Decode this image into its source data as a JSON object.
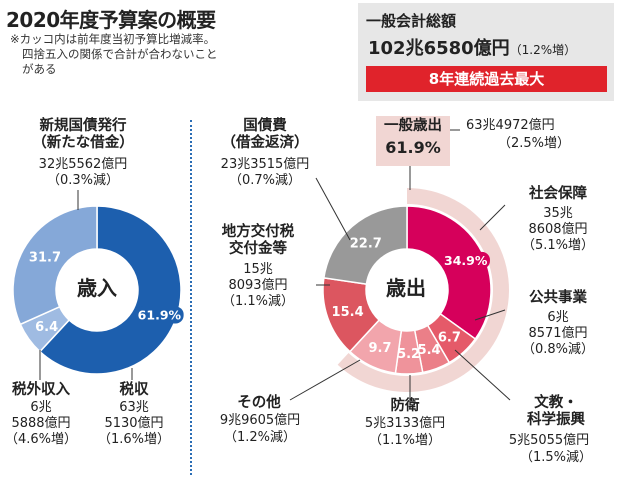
{
  "title": "2020年度予算案の概要",
  "notes": [
    "※カッコ内は前年度当初予算比増減率。",
    "四捨五入の関係で合計が合わないこと",
    "がある"
  ],
  "total": {
    "label": "一般会計総額",
    "value_main": "102兆6580億円",
    "value_change": "（1.2%増）",
    "banner": "8年連続過去最大"
  },
  "revenue": {
    "center_label": "歳入",
    "items": [
      {
        "key": "new_bonds",
        "name_lines": [
          "新規国債発行",
          "（新たな借金）"
        ],
        "amount": "32兆5562億円",
        "change": "（0.3%減）",
        "share": "31.7",
        "color": "#85a8d8"
      },
      {
        "key": "non_tax",
        "name_lines": [
          "税外収入"
        ],
        "amount_lines": [
          "6兆",
          "5888億円"
        ],
        "change": "（4.6%増）",
        "share": "6.4",
        "color": "#9fbbe2"
      },
      {
        "key": "tax",
        "name_lines": [
          "税収"
        ],
        "amount_lines": [
          "63兆",
          "5130億円"
        ],
        "change": "（1.6%増）",
        "share": "61.9%",
        "color": "#1d5fae"
      }
    ]
  },
  "expenditure": {
    "center_label": "歳出",
    "general": {
      "name": "一般歳出",
      "share": "61.9%",
      "amount": "63兆4972億円",
      "change": "（2.5%増）"
    },
    "items": [
      {
        "key": "debt_service",
        "name_lines": [
          "国債費",
          "（借金返済）"
        ],
        "amount": "23兆3515億円",
        "change": "（0.7%減）",
        "share": "22.7",
        "color": "#999999"
      },
      {
        "key": "local_grants",
        "name_lines": [
          "地方交付税",
          "交付金等"
        ],
        "amount_lines": [
          "15兆",
          "8093億円"
        ],
        "change": "（1.1%減）",
        "share": "15.4",
        "color": "#dc5660"
      },
      {
        "key": "social_security",
        "name_lines": [
          "社会保障"
        ],
        "amount_lines": [
          "35兆",
          "8608億円"
        ],
        "change": "（5.1%増）",
        "share": "34.9%",
        "color": "#d6005b"
      },
      {
        "key": "public_works",
        "name_lines": [
          "公共事業"
        ],
        "amount_lines": [
          "6兆",
          "8571億円"
        ],
        "change": "（0.8%減）",
        "share": "6.7",
        "color": "#e55a69"
      },
      {
        "key": "education",
        "name_lines": [
          "文教・",
          "科学振興"
        ],
        "amount": "5兆5055億円",
        "change": "（1.5%減）",
        "share": "5.4",
        "color": "#eb7f88"
      },
      {
        "key": "defense",
        "name_lines": [
          "防衛"
        ],
        "amount": "5兆3133億円",
        "change": "（1.1%増）",
        "share": "5.2",
        "color": "#ef939b"
      },
      {
        "key": "other",
        "name_lines": [
          "その他"
        ],
        "amount": "9兆9605億円",
        "change": "（1.2%減）",
        "share": "9.7",
        "color": "#f2a5ac"
      }
    ]
  },
  "chart_data": [
    {
      "type": "pie",
      "title": "歳入",
      "categories": [
        "税収",
        "税外収入",
        "新規国債発行"
      ],
      "values": [
        61.9,
        6.4,
        31.7
      ],
      "unit": "%",
      "colors": [
        "#1d5fae",
        "#9fbbe2",
        "#85a8d8"
      ]
    },
    {
      "type": "pie",
      "title": "歳出",
      "categories": [
        "社会保障",
        "公共事業",
        "文教・科学振興",
        "防衛",
        "その他",
        "地方交付税交付金等",
        "国債費"
      ],
      "values": [
        34.9,
        6.7,
        5.4,
        5.2,
        9.7,
        15.4,
        22.7
      ],
      "unit": "%",
      "colors": [
        "#d6005b",
        "#e55a69",
        "#eb7f88",
        "#ef939b",
        "#f2a5ac",
        "#dc5660",
        "#999999"
      ]
    }
  ]
}
